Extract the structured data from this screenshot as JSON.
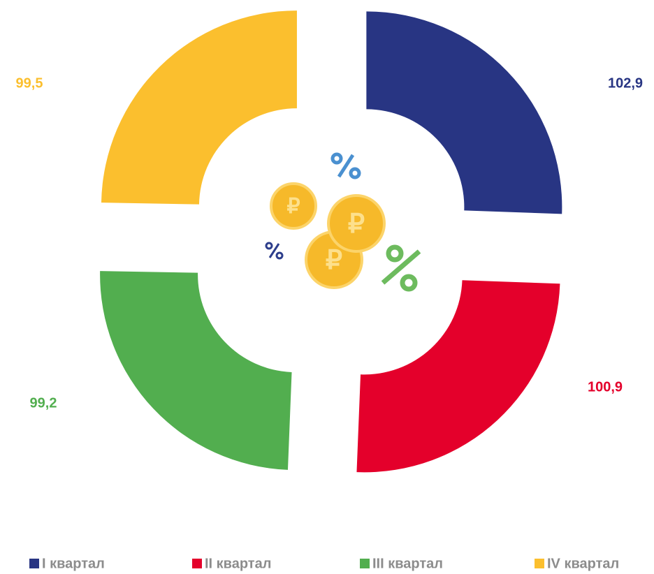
{
  "chart_data": {
    "type": "donut",
    "categories": [
      "I квартал",
      "II квартал",
      "III квартал",
      "IV квартал"
    ],
    "values": [
      102.9,
      100.9,
      99.2,
      99.5
    ],
    "value_labels": [
      "102,9",
      "100,9",
      "99,2",
      "99,5"
    ],
    "colors": [
      "#283583",
      "#e4002b",
      "#52ae4f",
      "#fbbf2e"
    ],
    "legend": "bottom"
  }
}
